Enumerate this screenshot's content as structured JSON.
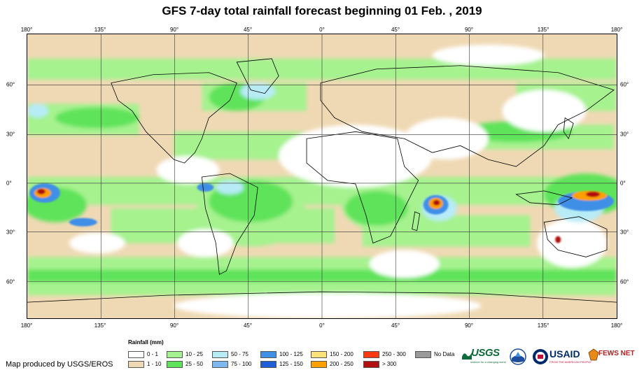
{
  "title": "GFS 7-day total rainfall forecast beginning 01 Feb. , 2019",
  "axes": {
    "lon_ticks": [
      "180°",
      "135°",
      "90°",
      "45°",
      "0°",
      "45°",
      "90°",
      "135°",
      "180°"
    ],
    "lat_ticks": [
      "60°",
      "30°",
      "0°",
      "30°",
      "60°"
    ]
  },
  "legend": {
    "title": "Rainfall (mm)",
    "items": [
      {
        "label": "0 - 1",
        "color": "#ffffff"
      },
      {
        "label": "1 - 10",
        "color": "#efd9b4"
      },
      {
        "label": "10 - 25",
        "color": "#a6f28f"
      },
      {
        "label": "25 - 50",
        "color": "#5ee35a"
      },
      {
        "label": "50 - 75",
        "color": "#b7ecf7"
      },
      {
        "label": "75 - 100",
        "color": "#7fb8f0"
      },
      {
        "label": "100 - 125",
        "color": "#3f8fe6"
      },
      {
        "label": "125 - 150",
        "color": "#1f5fd6"
      },
      {
        "label": "150 - 200",
        "color": "#ffe27a"
      },
      {
        "label": "200 - 250",
        "color": "#ff9f00"
      },
      {
        "label": "250 - 300",
        "color": "#ff3a10"
      },
      {
        "label": "> 300",
        "color": "#b01010"
      },
      {
        "label": "No Data",
        "color": "#9a9a9a"
      }
    ]
  },
  "credit": "Map produced by USGS/EROS",
  "logos": {
    "usgs": "USGS",
    "usgs_tagline": "science for a changing world",
    "usaid": "USAID",
    "usaid_tagline": "FROM THE AMERICAN PEOPLE",
    "fews": "FEWS NET",
    "noaa_icon": "noaa-logo-icon"
  }
}
